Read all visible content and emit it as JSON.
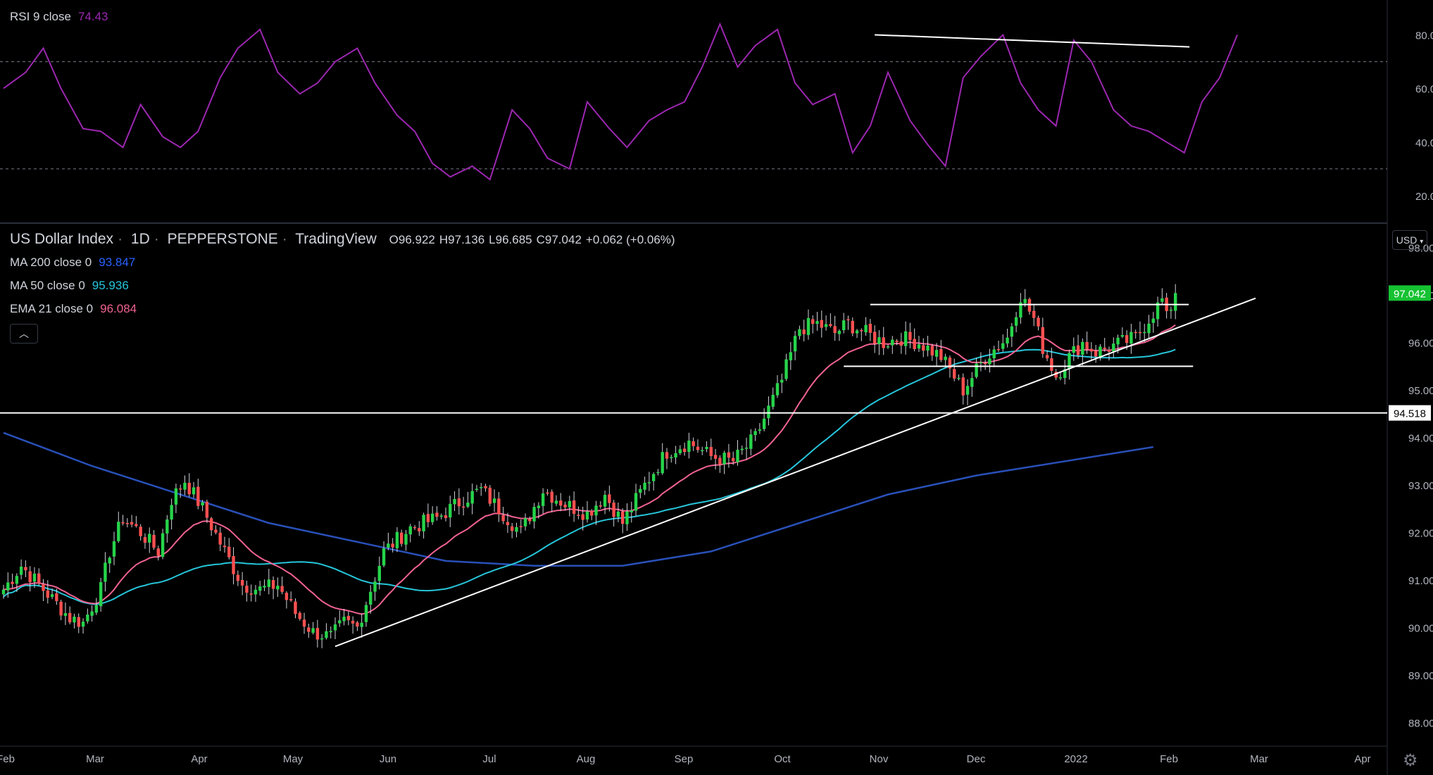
{
  "rsi_legend": {
    "label": "RSI 9 close",
    "value": "74.43"
  },
  "main_legend": {
    "symbol": "US Dollar Index",
    "interval": "1D",
    "exchange": "PEPPERSTONE",
    "source": "TradingView",
    "o": "O96.922",
    "h": "H97.136",
    "l": "L96.685",
    "c": "C97.042",
    "change": "+0.062 (+0.06%)"
  },
  "indicators": [
    {
      "label": "MA 200 close 0",
      "value": "93.847",
      "color": "#2962ff"
    },
    {
      "label": "MA 50 close 0",
      "value": "95.936",
      "color": "#26c6da"
    },
    {
      "label": "EMA 21 close 0",
      "value": "96.084",
      "color": "#f06292"
    }
  ],
  "currency_button": "USD",
  "collapse_icon": "chevron-up-icon",
  "settings_icon": "gear-icon",
  "colors": {
    "up": "#26d44a",
    "down": "#ff5050",
    "rsi": "#9c27b0",
    "ma200": "#2950b8",
    "ma50": "#26c6da",
    "ema21": "#f06292",
    "price_tag": "#16c232"
  },
  "chart_data": [
    {
      "type": "line",
      "name": "RSI 9 close",
      "ylim": [
        10,
        93
      ],
      "yticks": [
        "20.00",
        "40.00",
        "60.00",
        "80.00"
      ],
      "levels": [
        30,
        70
      ],
      "x": [
        0,
        5,
        9,
        13,
        18,
        22,
        27,
        31,
        36,
        40,
        44,
        49,
        53,
        58,
        62,
        67,
        71,
        75,
        80,
        84,
        89,
        93,
        97,
        101,
        106,
        110,
        115,
        119,
        123,
        128,
        132,
        137,
        141,
        146,
        150,
        154,
        158,
        162,
        166,
        170,
        175,
        179,
        183,
        188,
        192,
        196,
        200,
        205,
        209,
        213,
        217,
        221,
        226,
        230,
        234,
        238,
        242,
        246,
        251,
        255,
        259,
        263,
        267,
        271,
        275,
        279
      ],
      "values": [
        60,
        66,
        75,
        60,
        45,
        44,
        38,
        54,
        42,
        38,
        44,
        64,
        75,
        82,
        66,
        58,
        62,
        70,
        75,
        62,
        50,
        44,
        32,
        27,
        31,
        26,
        52,
        45,
        34,
        30,
        55,
        45,
        38,
        48,
        52,
        55,
        68,
        84,
        68,
        76,
        82,
        62,
        54,
        58,
        36,
        46,
        66,
        48,
        39,
        31,
        64,
        72,
        80,
        62,
        52,
        46,
        78,
        70,
        52,
        46,
        44,
        40,
        36,
        55,
        64,
        80
      ],
      "trendline": {
        "x": [
          197,
          265
        ],
        "y": [
          80,
          75.5
        ]
      },
      "title": "",
      "xlabel": "",
      "ylabel": ""
    },
    {
      "type": "line",
      "name": "US Dollar Index · 1D · PEPPERSTONE",
      "ylim": [
        87.5,
        98.5
      ],
      "yticks": [
        "88.000",
        "89.000",
        "90.000",
        "91.000",
        "92.000",
        "93.000",
        "94.000",
        "95.000",
        "96.000",
        "97.000",
        "98.000"
      ],
      "xticks": [
        "Feb",
        "Mar",
        "Apr",
        "May",
        "Jun",
        "Jul",
        "Aug",
        "Sep",
        "Oct",
        "Nov",
        "Dec",
        "2022",
        "Feb",
        "Mar",
        "Apr"
      ],
      "close_knots": {
        "x": [
          0,
          4,
          8,
          12,
          15,
          18,
          22,
          24,
          27,
          31,
          35,
          38,
          41,
          45,
          50,
          54,
          58,
          62,
          66,
          70,
          74,
          77,
          80,
          86,
          92,
          98,
          104,
          108,
          112,
          117,
          122,
          127,
          132,
          136,
          140,
          145,
          150,
          155,
          160,
          165,
          170,
          176,
          180,
          184,
          188,
          191,
          195,
          199,
          203,
          207,
          212,
          217,
          222,
          227,
          230,
          233,
          235,
          238,
          241,
          244,
          247,
          250,
          253,
          256,
          259,
          262,
          263,
          265
        ],
        "values": [
          90.8,
          91.3,
          90.9,
          90.5,
          90.2,
          90.1,
          90.8,
          91.6,
          92.3,
          92.0,
          91.6,
          92.7,
          93.1,
          92.5,
          91.6,
          90.9,
          90.8,
          90.9,
          90.3,
          89.9,
          89.8,
          90.1,
          90.0,
          91.6,
          92.1,
          92.3,
          92.7,
          92.9,
          92.5,
          92.0,
          92.9,
          92.6,
          92.4,
          92.8,
          92.2,
          93.0,
          93.7,
          93.9,
          93.6,
          93.5,
          94.0,
          95.2,
          96.3,
          96.4,
          96.2,
          96.4,
          96.2,
          96.0,
          96.1,
          96.0,
          95.7,
          95.0,
          95.7,
          96.1,
          97.0,
          96.5,
          95.9,
          95.3,
          95.7,
          96.0,
          95.8,
          95.9,
          96.0,
          96.1,
          96.5,
          96.9,
          96.5,
          97.042
        ]
      },
      "ma200": {
        "x": [
          0,
          20,
          40,
          60,
          80,
          100,
          120,
          140,
          160,
          180,
          200,
          220,
          240,
          260
        ],
        "values": [
          94.1,
          93.4,
          92.8,
          92.2,
          91.8,
          91.4,
          91.3,
          91.3,
          91.6,
          92.2,
          92.8,
          93.2,
          93.5,
          93.8
        ]
      },
      "horizontal_lines": [
        94.518,
        96.8,
        95.5
      ],
      "support_trendline": {
        "x": [
          75,
          268
        ],
        "y": [
          89.6,
          96.4
        ]
      },
      "last_price": "97.042",
      "marked_level": "94.518",
      "title": "",
      "xlabel": "",
      "ylabel": ""
    }
  ]
}
